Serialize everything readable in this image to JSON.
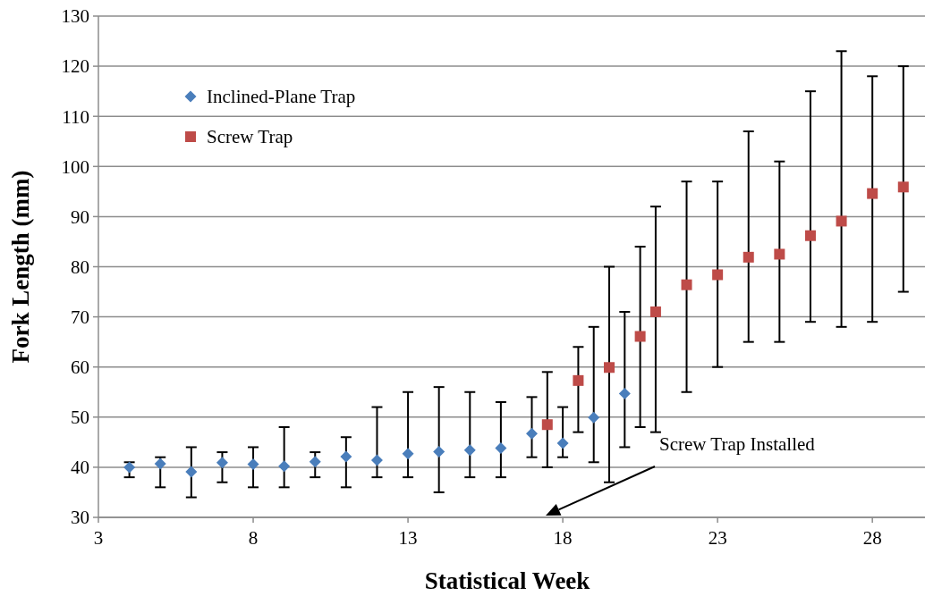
{
  "chart_data": {
    "type": "scatter",
    "xlabel": "Statistical Week",
    "ylabel": "Fork Length (mm)",
    "xlim": [
      3,
      29.7
    ],
    "xticks": [
      3,
      8,
      13,
      18,
      23,
      28
    ],
    "ylim": [
      30,
      130
    ],
    "yticks": [
      30,
      40,
      50,
      60,
      70,
      80,
      90,
      100,
      110,
      120,
      130
    ],
    "grid": "y",
    "legend": "top left",
    "series": [
      {
        "name": "Inclined-Plane Trap",
        "color": "#4a7ebb",
        "marker": "diamond",
        "x": [
          4,
          5,
          6,
          7,
          8,
          9,
          10,
          11,
          12,
          13,
          14,
          15,
          16,
          17,
          18,
          19,
          20
        ],
        "values": [
          40.0,
          40.7,
          39.1,
          40.9,
          40.6,
          40.2,
          41.1,
          42.1,
          41.4,
          42.7,
          43.1,
          43.4,
          43.8,
          46.7,
          44.8,
          49.9,
          54.7
        ],
        "errors": [
          [
            38,
            41
          ],
          [
            36,
            42
          ],
          [
            34,
            44
          ],
          [
            37,
            43
          ],
          [
            36,
            44
          ],
          [
            36,
            48
          ],
          [
            38,
            43
          ],
          [
            36,
            46
          ],
          [
            38,
            52
          ],
          [
            38,
            55
          ],
          [
            35,
            56
          ],
          [
            38,
            55
          ],
          [
            38,
            53
          ],
          [
            42,
            54
          ],
          [
            42,
            52
          ],
          [
            41,
            68
          ],
          [
            44,
            71
          ]
        ]
      },
      {
        "name": "Screw Trap",
        "color": "#be4b48",
        "marker": "square",
        "x": [
          17.5,
          18.5,
          19.5,
          20.5,
          21,
          22,
          23,
          24,
          25,
          26,
          27,
          28,
          29
        ],
        "values": [
          48.5,
          57.3,
          59.9,
          66.1,
          71.0,
          76.4,
          78.4,
          81.9,
          82.5,
          86.2,
          89.1,
          94.6,
          95.9
        ],
        "errors": [
          [
            40,
            59
          ],
          [
            47,
            64
          ],
          [
            37,
            80
          ],
          [
            48,
            84
          ],
          [
            47,
            92
          ],
          [
            55,
            97
          ],
          [
            60,
            97
          ],
          [
            65,
            107
          ],
          [
            65,
            101
          ],
          [
            69,
            115
          ],
          [
            68,
            123
          ],
          [
            69,
            118
          ],
          [
            75,
            120
          ]
        ]
      }
    ],
    "annotations": [
      "Screw Trap Installed"
    ]
  }
}
